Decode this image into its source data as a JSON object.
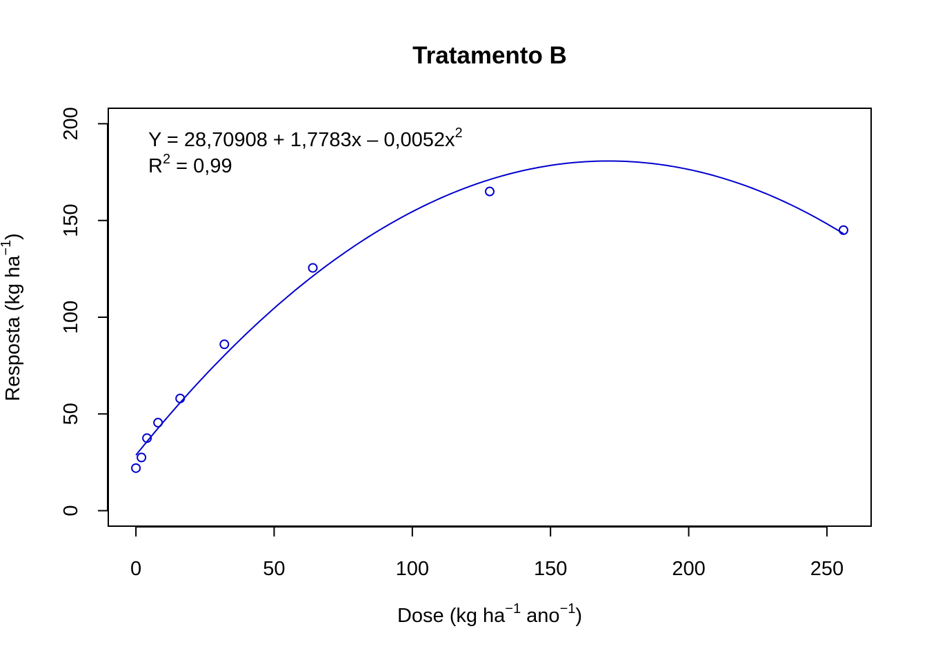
{
  "chart_data": {
    "type": "scatter",
    "title": "Tratamento B",
    "xlabel": {
      "main": "Dose (kg ha",
      "sup1": "−1",
      "mid": " ano",
      "sup2": "−1",
      "end": ")"
    },
    "ylabel": {
      "main": "Resposta (kg ha",
      "sup": "−1",
      "end": ")"
    },
    "xlim": [
      -10,
      266
    ],
    "ylim": [
      -8,
      208
    ],
    "x_ticks": [
      0,
      50,
      100,
      150,
      200,
      250
    ],
    "y_ticks": [
      0,
      50,
      100,
      150,
      200
    ],
    "x_tick_labels": [
      "0",
      "50",
      "100",
      "150",
      "200",
      "250"
    ],
    "y_tick_labels": [
      "0",
      "50",
      "100",
      "150",
      "200"
    ],
    "grid": false,
    "legend": "none",
    "series": [
      {
        "kind": "points",
        "color": "#0000cd",
        "x": [
          0,
          2,
          4,
          8,
          16,
          32,
          64,
          128,
          256
        ],
        "y": [
          22,
          27.5,
          37.5,
          45.5,
          58,
          86,
          125.5,
          165,
          145
        ]
      },
      {
        "kind": "fitted-curve",
        "color": "#0000cd",
        "coefficients": [
          28.70908,
          1.7783,
          -0.0052
        ],
        "x_range": [
          0,
          256
        ]
      }
    ],
    "annotations": {
      "equation": {
        "base": "Y = 28,70908 + 1,7783x – 0,0052x",
        "sup": "2"
      },
      "r2": {
        "r": "R",
        "sup": "2",
        "rest": " = 0,99"
      }
    }
  }
}
